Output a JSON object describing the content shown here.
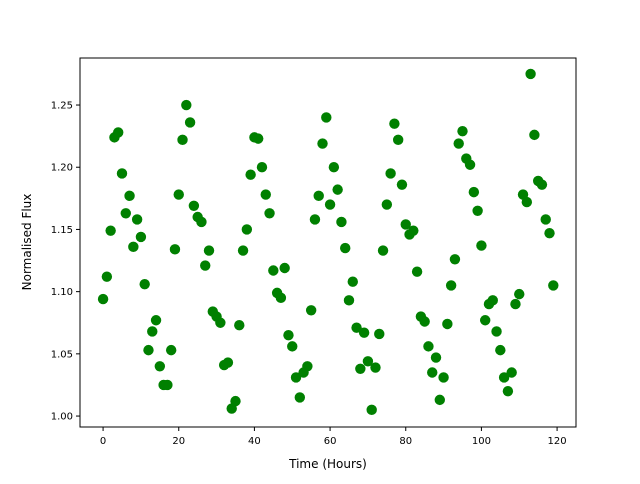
{
  "chart_data": {
    "type": "scatter",
    "title": "",
    "xlabel": "Time (Hours)",
    "ylabel": "Normalised Flux",
    "xlim": [
      -6.1,
      125.0
    ],
    "ylim": [
      0.9912,
      1.2878
    ],
    "xticks": [
      0,
      20,
      40,
      60,
      80,
      100,
      120
    ],
    "xtick_labels": [
      "0",
      "20",
      "40",
      "60",
      "80",
      "100",
      "120"
    ],
    "yticks": [
      1.0,
      1.05,
      1.1,
      1.15,
      1.2,
      1.25
    ],
    "ytick_labels": [
      "1.00",
      "1.05",
      "1.10",
      "1.15",
      "1.20",
      "1.25"
    ],
    "grid": false,
    "marker_color": "#008000",
    "x": [
      0,
      1,
      2,
      3,
      4,
      5,
      6,
      7,
      8,
      9,
      10,
      11,
      12,
      13,
      14,
      15,
      16,
      17,
      18,
      19,
      20,
      21,
      22,
      23,
      24,
      25,
      26,
      27,
      28,
      29,
      30,
      31,
      32,
      33,
      34,
      35,
      36,
      37,
      38,
      39,
      40,
      41,
      42,
      43,
      44,
      45,
      46,
      47,
      48,
      49,
      50,
      51,
      52,
      53,
      54,
      55,
      56,
      57,
      58,
      59,
      60,
      61,
      62,
      63,
      64,
      65,
      66,
      67,
      68,
      69,
      70,
      71,
      72,
      73,
      74,
      75,
      76,
      77,
      78,
      79,
      80,
      81,
      82,
      83,
      84,
      85,
      86,
      87,
      88,
      89,
      90,
      91,
      92,
      93,
      94,
      95,
      96,
      97,
      98,
      99,
      100,
      101,
      102,
      103,
      104,
      105,
      106,
      107,
      108,
      109,
      110,
      111,
      112,
      113,
      114,
      115,
      116,
      117,
      118,
      119
    ],
    "y": [
      1.094,
      1.112,
      1.149,
      1.224,
      1.228,
      1.195,
      1.163,
      1.177,
      1.136,
      1.158,
      1.144,
      1.106,
      1.053,
      1.068,
      1.077,
      1.04,
      1.025,
      1.025,
      1.053,
      1.134,
      1.178,
      1.222,
      1.25,
      1.236,
      1.169,
      1.16,
      1.156,
      1.121,
      1.133,
      1.084,
      1.08,
      1.075,
      1.041,
      1.043,
      1.006,
      1.012,
      1.073,
      1.133,
      1.15,
      1.194,
      1.224,
      1.223,
      1.2,
      1.178,
      1.163,
      1.117,
      1.099,
      1.095,
      1.119,
      1.065,
      1.056,
      1.031,
      1.015,
      1.035,
      1.04,
      1.085,
      1.158,
      1.177,
      1.219,
      1.24,
      1.17,
      1.2,
      1.182,
      1.156,
      1.135,
      1.093,
      1.108,
      1.071,
      1.038,
      1.067,
      1.044,
      1.005,
      1.039,
      1.066,
      1.133,
      1.17,
      1.195,
      1.235,
      1.222,
      1.186,
      1.154,
      1.146,
      1.149,
      1.116,
      1.08,
      1.076,
      1.056,
      1.035,
      1.047,
      1.013,
      1.031,
      1.074,
      1.105,
      1.126,
      1.219,
      1.229,
      1.207,
      1.202,
      1.18,
      1.165,
      1.137,
      1.077,
      1.09,
      1.093,
      1.068,
      1.053,
      1.031,
      1.02,
      1.035,
      1.09,
      1.098,
      1.178,
      1.172,
      1.275,
      1.226,
      1.189,
      1.186,
      1.158,
      1.147,
      1.105
    ]
  }
}
